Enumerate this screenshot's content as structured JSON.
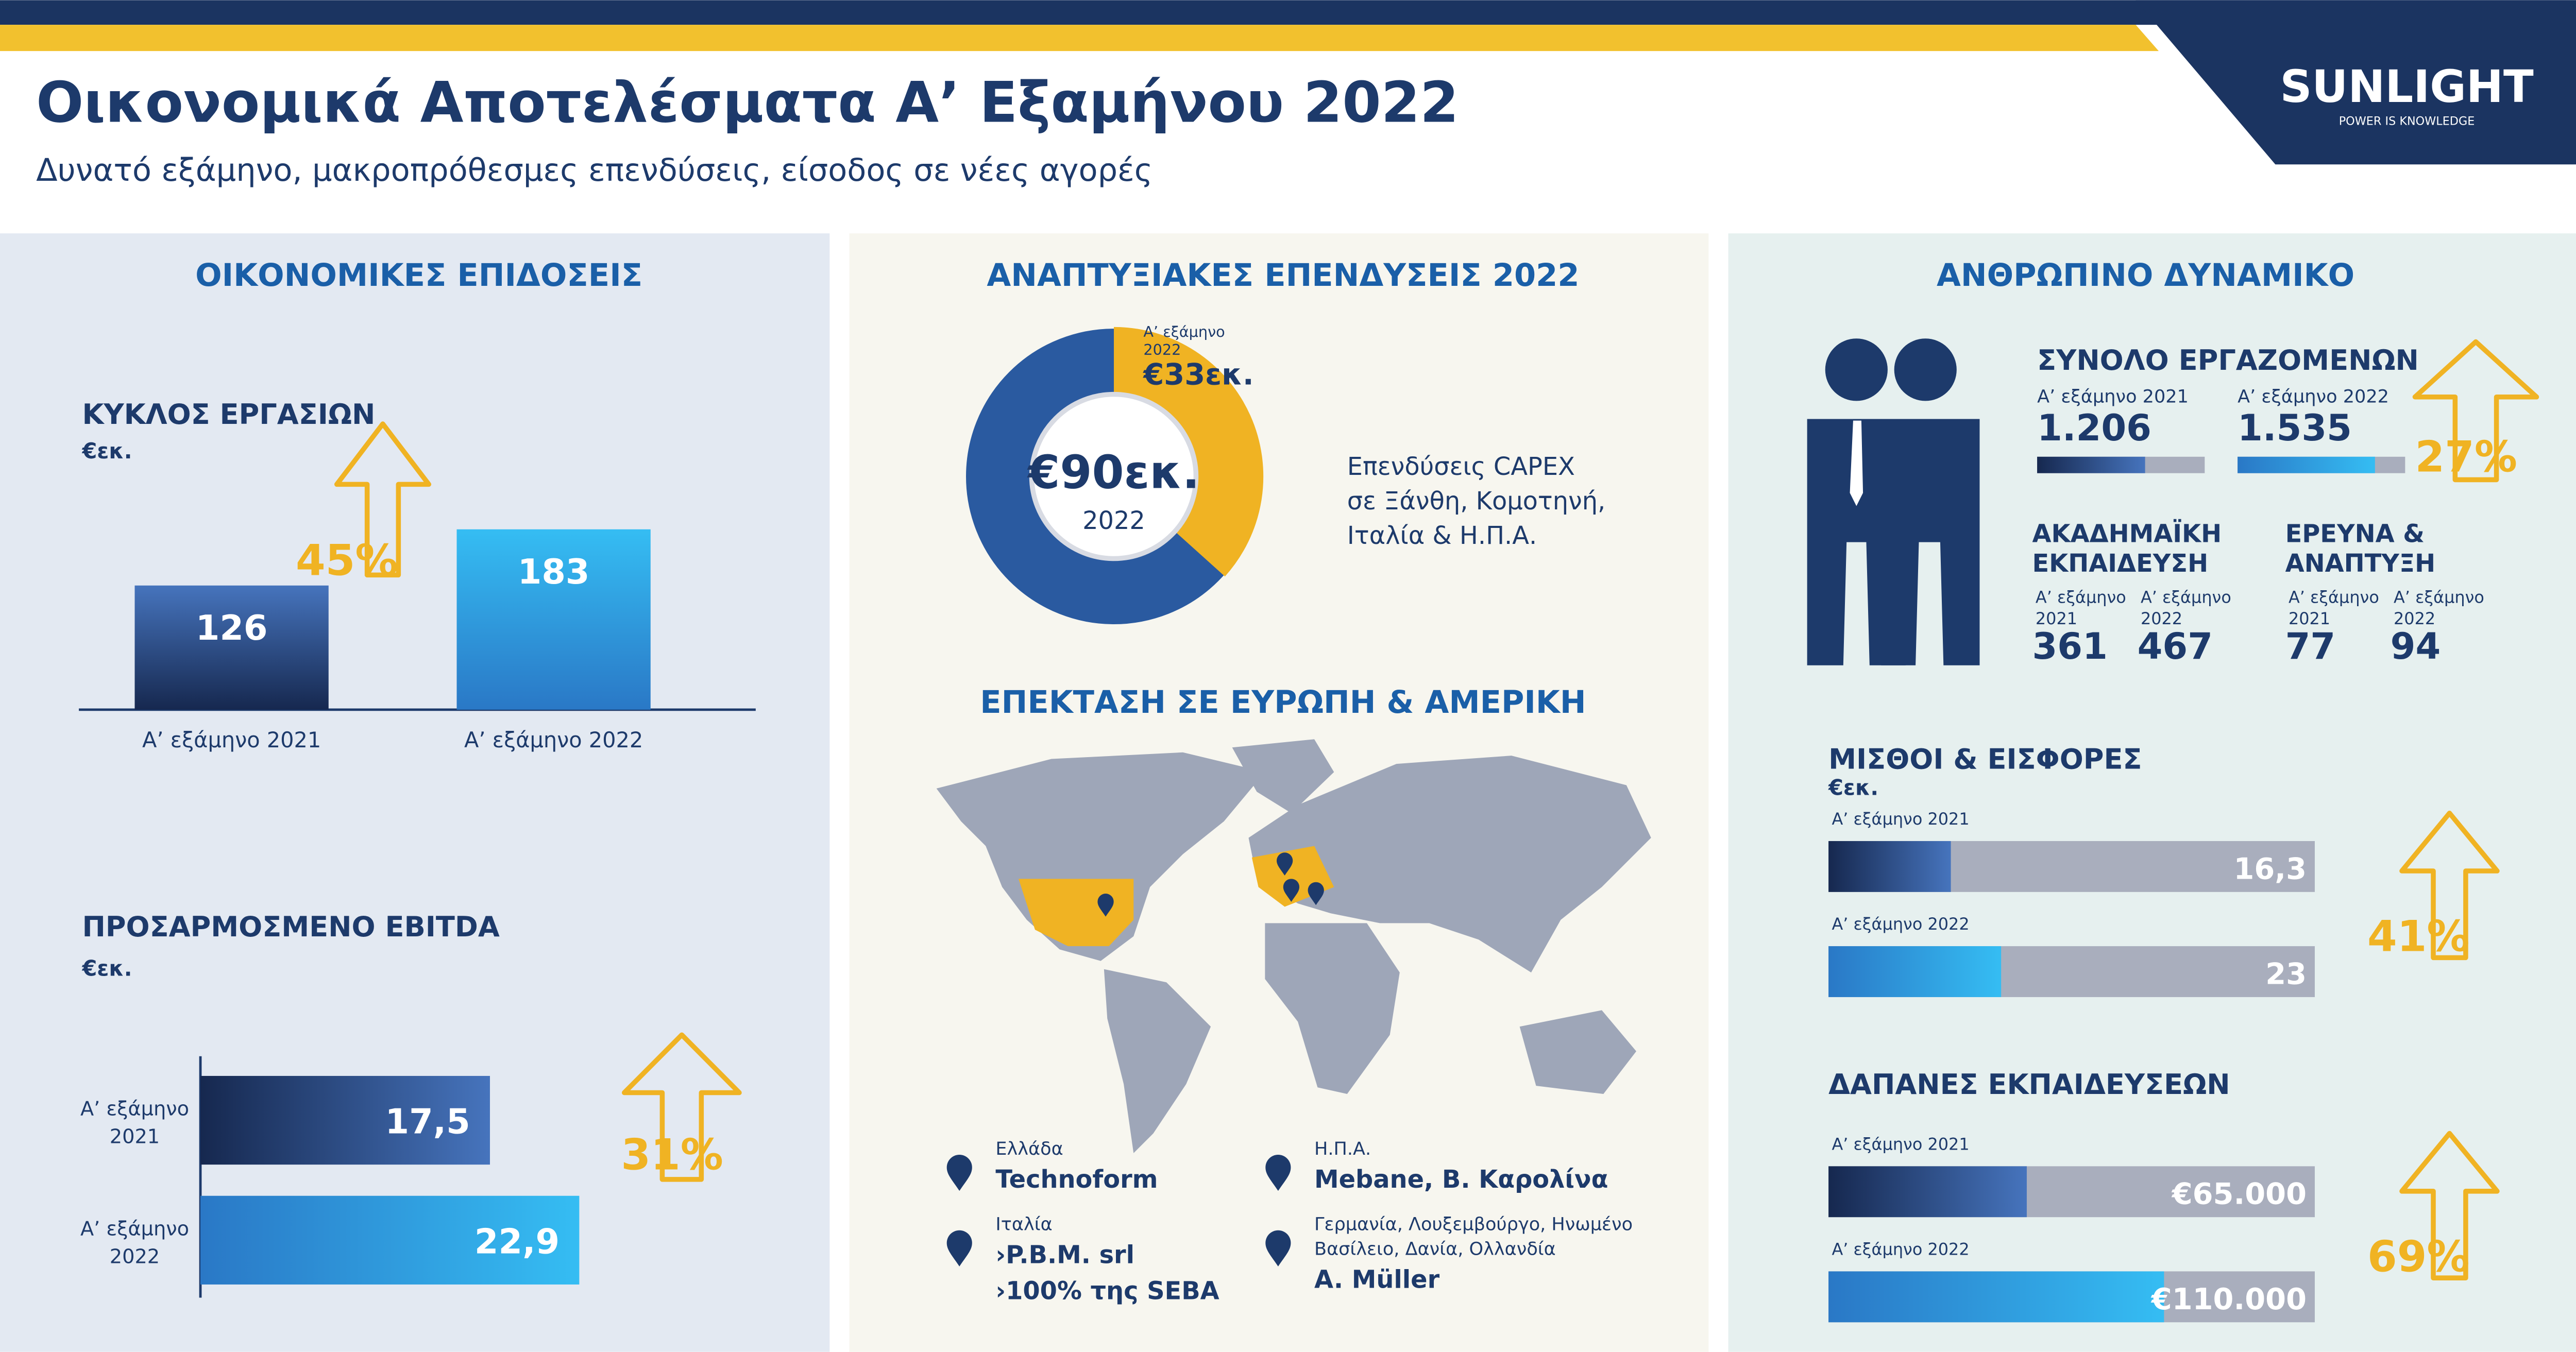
{
  "header": {
    "title": "Οικονομικά Αποτελέσματα Α’ Εξαμήνου 2022",
    "subtitle": "Δυνατό εξάμηνο, μακροπρόθεσμες επενδύσεις, είσοδος σε νέες αγορές",
    "logo": "SUNLIGHT",
    "tagline": "POWER IS KNOWLEDGE"
  },
  "financial": {
    "heading": "ΟΙΚΟΝΟΜΙΚΕΣ ΕΠΙΔΟΣΕΙΣ",
    "revenue": {
      "title": "ΚΥΚΛΟΣ ΕΡΓΑΣΙΩΝ",
      "unit": "€εκ.",
      "categories": [
        "Α’ εξάμηνο 2021",
        "Α’ εξάμηνο 2022"
      ],
      "values": [
        126,
        183
      ],
      "growth": "45%"
    },
    "ebitda": {
      "title": "ΠΡΟΣΑΡΜΟΣΜΕΝΟ EBITDA",
      "unit": "€εκ.",
      "categories": [
        [
          "Α’ εξάμηνο",
          "2021"
        ],
        [
          "Α’ εξάμηνο",
          "2022"
        ]
      ],
      "values": [
        17.5,
        22.9
      ],
      "value_labels": [
        "17,5",
        "22,9"
      ],
      "growth": "31%"
    }
  },
  "investments": {
    "heading": "ΑΝΑΠΤΥΞΙΑΚΕΣ ΕΠΕΝΔΥΣΕΙΣ 2022",
    "total": 90,
    "total_label": "€90εκ.",
    "year": "2022",
    "half": {
      "period": [
        "Α’ εξάμηνο",
        "2022"
      ],
      "value": 33,
      "label": "€33εκ."
    },
    "description": [
      "Επενδύσεις CAPEX",
      "σε Ξάνθη, Κομοτηνή,",
      "Ιταλία & Η.Π.Α."
    ]
  },
  "expansion": {
    "heading": "ΕΠΕΚΤΑΣΗ ΣΕ ΕΥΡΩΠΗ & ΑΜΕΡΙΚΗ",
    "locations": [
      {
        "country": [
          "Ελλάδα"
        ],
        "items": [
          "Technoform"
        ]
      },
      {
        "country": [
          "Η.Π.Α."
        ],
        "items": [
          "Mebane, Β. Καρολίνα"
        ]
      },
      {
        "country": [
          "Ιταλία"
        ],
        "items": [
          "›P.B.M. srl",
          "›100% της SEBA"
        ]
      },
      {
        "country": [
          "Γερμανία, Λουξεμβούργο, Ηνωμένο",
          "Βασίλειο, Δανία, Ολλανδία"
        ],
        "items": [
          "A. Müller"
        ]
      }
    ]
  },
  "people": {
    "heading": "ΑΝΘΡΩΠΙΝΟ ΔΥΝΑΜΙΚΟ",
    "employees": {
      "title": "ΣΥΝΟΛΟ ΕΡΓΑΖΟΜΕΝΩΝ",
      "periods": [
        "Α’ εξάμηνο 2021",
        "Α’ εξάμηνο 2022"
      ],
      "values": [
        1206,
        1535
      ],
      "value_labels": [
        "1.206",
        "1.535"
      ],
      "growth": "27%"
    },
    "education": {
      "title": [
        "ΑΚΑΔΗΜΑΪΚΗ",
        "ΕΚΠΑΙΔΕΥΣΗ"
      ],
      "periods": [
        [
          "Α’ εξάμηνο",
          "2021"
        ],
        [
          "Α’ εξάμηνο",
          "2022"
        ]
      ],
      "values": [
        361,
        467
      ]
    },
    "research": {
      "title": [
        "ΕΡΕΥΝΑ &",
        "ΑΝΑΠΤΥΞΗ"
      ],
      "periods": [
        [
          "Α’ εξάμηνο",
          "2021"
        ],
        [
          "Α’ εξάμηνο",
          "2022"
        ]
      ],
      "values": [
        77,
        94
      ]
    },
    "salaries": {
      "title": "ΜΙΣΘΟΙ & ΕΙΣΦΟΡΕΣ",
      "unit": "€εκ.",
      "periods": [
        "Α’ εξάμηνο 2021",
        "Α’ εξάμηνο 2022"
      ],
      "values": [
        16.3,
        23
      ],
      "value_labels": [
        "16,3",
        "23"
      ],
      "growth": "41%"
    },
    "training": {
      "title": "ΔΑΠΑΝΕΣ ΕΚΠΑΙΔΕΥΣΕΩΝ",
      "periods": [
        "Α’ εξάμηνο 2021",
        "Α’ εξάμηνο 2022"
      ],
      "values": [
        65000,
        110000
      ],
      "value_labels": [
        "€65.000",
        "€110.000"
      ],
      "growth": "69%"
    }
  }
}
